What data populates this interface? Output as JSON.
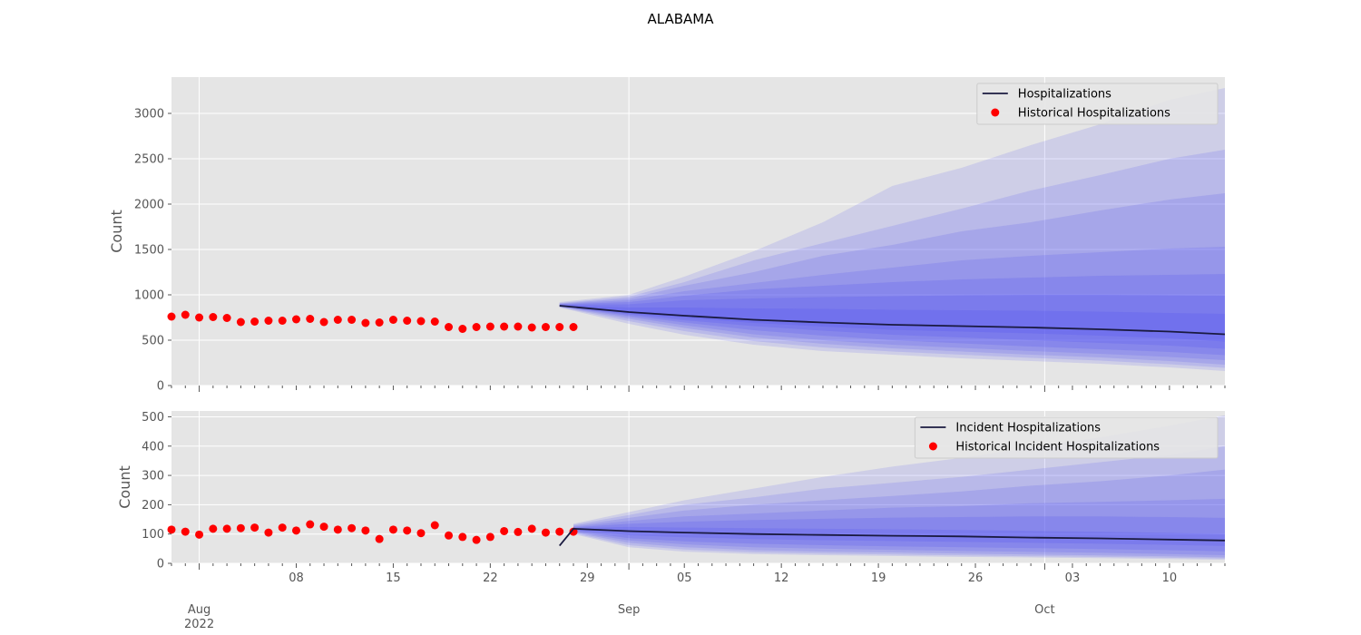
{
  "figure": {
    "title": "ALABAMA"
  },
  "x_axis": {
    "major_ticks": [
      {
        "date": "2022-08-01",
        "label": "Aug",
        "sub": "2022"
      },
      {
        "date": "2022-09-01",
        "label": "Sep",
        "sub": ""
      },
      {
        "date": "2022-10-01",
        "label": "Oct",
        "sub": ""
      }
    ],
    "minor_labels": [
      {
        "date": "2022-08-08",
        "label": "08"
      },
      {
        "date": "2022-08-15",
        "label": "15"
      },
      {
        "date": "2022-08-22",
        "label": "22"
      },
      {
        "date": "2022-08-29",
        "label": "29"
      },
      {
        "date": "2022-09-05",
        "label": "05"
      },
      {
        "date": "2022-09-12",
        "label": "12"
      },
      {
        "date": "2022-09-19",
        "label": "19"
      },
      {
        "date": "2022-09-26",
        "label": "26"
      },
      {
        "date": "2022-10-03",
        "label": "03"
      },
      {
        "date": "2022-10-10",
        "label": "10"
      }
    ]
  },
  "colors": {
    "background": "#e5e5e5",
    "grid": "#ffffff",
    "observed": "#ff0000",
    "median": "#1a1a40",
    "band": "#4b4bf0"
  },
  "chart_data": [
    {
      "type": "line",
      "title": "",
      "xlabel": "",
      "ylabel": "Count",
      "xlim": [
        "2022-07-30",
        "2022-10-14"
      ],
      "ylim": [
        0,
        3400
      ],
      "yticks": [
        0,
        500,
        1000,
        1500,
        2000,
        2500,
        3000
      ],
      "grid": true,
      "legend_position": "top-right",
      "series": [
        {
          "name": "Historical Hospitalizations",
          "kind": "scatter",
          "start_date": "2022-07-30",
          "values": [
            760,
            780,
            750,
            755,
            745,
            700,
            705,
            715,
            715,
            730,
            735,
            700,
            725,
            725,
            690,
            695,
            725,
            715,
            710,
            705,
            645,
            625,
            645,
            650,
            650,
            650,
            640,
            645,
            645,
            645
          ]
        },
        {
          "name": "Hospitalizations",
          "kind": "line",
          "x": [
            "2022-08-27",
            "2022-09-01",
            "2022-09-05",
            "2022-09-10",
            "2022-09-15",
            "2022-09-20",
            "2022-09-25",
            "2022-09-30",
            "2022-10-05",
            "2022-10-10",
            "2022-10-14"
          ],
          "values": [
            880,
            810,
            770,
            725,
            695,
            670,
            655,
            640,
            620,
            595,
            565
          ]
        }
      ],
      "bands": {
        "x": [
          "2022-08-27",
          "2022-09-01",
          "2022-09-05",
          "2022-09-10",
          "2022-09-15",
          "2022-09-20",
          "2022-09-25",
          "2022-09-30",
          "2022-10-05",
          "2022-10-10",
          "2022-10-14"
        ],
        "levels": [
          {
            "lower": [
              860,
              680,
              560,
              450,
              380,
              340,
              300,
              270,
              240,
              200,
              160
            ],
            "upper": [
              920,
              1000,
              1200,
              1480,
              1800,
              2200,
              2400,
              2650,
              2880,
              3150,
              3280
            ]
          },
          {
            "lower": [
              865,
              710,
              600,
              490,
              420,
              375,
              340,
              305,
              275,
              235,
              195
            ],
            "upper": [
              910,
              980,
              1140,
              1380,
              1570,
              1760,
              1950,
              2150,
              2320,
              2500,
              2600
            ]
          },
          {
            "lower": [
              868,
              735,
              635,
              530,
              460,
              410,
              375,
              340,
              310,
              270,
              230
            ],
            "upper": [
              905,
              960,
              1100,
              1250,
              1430,
              1550,
              1700,
              1800,
              1930,
              2050,
              2120
            ]
          },
          {
            "lower": [
              872,
              755,
              665,
              565,
              500,
              450,
              415,
              380,
              350,
              315,
              280
            ],
            "upper": [
              900,
              940,
              1040,
              1130,
              1220,
              1300,
              1380,
              1430,
              1470,
              1510,
              1530
            ]
          },
          {
            "lower": [
              875,
              770,
              695,
              610,
              550,
              500,
              465,
              430,
              400,
              370,
              335
            ],
            "upper": [
              895,
              920,
              990,
              1060,
              1100,
              1140,
              1170,
              1190,
              1210,
              1220,
              1230
            ]
          },
          {
            "lower": [
              877,
              785,
              720,
              655,
              605,
              560,
              530,
              500,
              470,
              440,
              405
            ],
            "upper": [
              890,
              895,
              940,
              960,
              975,
              985,
              995,
              1000,
              1000,
              995,
              990
            ]
          },
          {
            "lower": [
              878,
              795,
              745,
              690,
              650,
              615,
              595,
              575,
              550,
              520,
              485
            ],
            "upper": [
              885,
              860,
              860,
              850,
              845,
              835,
              830,
              825,
              815,
              800,
              790
            ]
          }
        ]
      }
    },
    {
      "type": "line",
      "title": "",
      "xlabel": "",
      "ylabel": "Count",
      "xlim": [
        "2022-07-30",
        "2022-10-14"
      ],
      "ylim": [
        0,
        520
      ],
      "yticks": [
        0,
        100,
        200,
        300,
        400,
        500
      ],
      "grid": true,
      "legend_position": "top-right",
      "series": [
        {
          "name": "Historical Incident Hospitalizations",
          "kind": "scatter",
          "start_date": "2022-07-30",
          "values": [
            115,
            108,
            98,
            118,
            118,
            120,
            122,
            105,
            122,
            112,
            133,
            125,
            115,
            120,
            112,
            83,
            115,
            112,
            103,
            130,
            95,
            90,
            80,
            90,
            110,
            107,
            118,
            105,
            108,
            108
          ]
        },
        {
          "name": "Incident Hospitalizations",
          "kind": "line",
          "x": [
            "2022-08-27",
            "2022-08-28",
            "2022-09-01",
            "2022-09-05",
            "2022-09-10",
            "2022-09-15",
            "2022-09-20",
            "2022-09-25",
            "2022-09-30",
            "2022-10-05",
            "2022-10-10",
            "2022-10-14"
          ],
          "values": [
            60,
            118,
            110,
            105,
            100,
            97,
            94,
            92,
            88,
            85,
            81,
            78
          ]
        }
      ],
      "bands": {
        "x": [
          "2022-08-28",
          "2022-09-01",
          "2022-09-05",
          "2022-09-10",
          "2022-09-15",
          "2022-09-20",
          "2022-09-25",
          "2022-09-30",
          "2022-10-05",
          "2022-10-10",
          "2022-10-14"
        ],
        "levels": [
          {
            "lower": [
              100,
              55,
              40,
              32,
              28,
              25,
              22,
              20,
              18,
              15,
              12
            ],
            "upper": [
              135,
              175,
              215,
              255,
              295,
              330,
              360,
              395,
              430,
              470,
              505
            ]
          },
          {
            "lower": [
              103,
              62,
              47,
              38,
              33,
              30,
              27,
              24,
              22,
              19,
              16
            ],
            "upper": [
              132,
              165,
              200,
              225,
              255,
              275,
              295,
              320,
              345,
              370,
              400
            ]
          },
          {
            "lower": [
              106,
              70,
              55,
              45,
              40,
              37,
              33,
              30,
              27,
              24,
              20
            ],
            "upper": [
              128,
              155,
              180,
              200,
              215,
              230,
              245,
              265,
              280,
              300,
              320
            ]
          },
          {
            "lower": [
              108,
              78,
              65,
              55,
              50,
              46,
              42,
              39,
              36,
              32,
              28
            ],
            "upper": [
              125,
              145,
              160,
              170,
              180,
              190,
              195,
              205,
              210,
              215,
              220
            ]
          },
          {
            "lower": [
              111,
              86,
              75,
              67,
              62,
              58,
              55,
              52,
              49,
              45,
              41
            ],
            "upper": [
              123,
              135,
              142,
              148,
              152,
              156,
              158,
              160,
              160,
              158,
              155
            ]
          },
          {
            "lower": [
              114,
              96,
              89,
              83,
              79,
              76,
              73,
              70,
              67,
              63,
              59
            ],
            "upper": [
              121,
              124,
              122,
              120,
              118,
              116,
              114,
              111,
              108,
              104,
              100
            ]
          }
        ]
      }
    }
  ]
}
